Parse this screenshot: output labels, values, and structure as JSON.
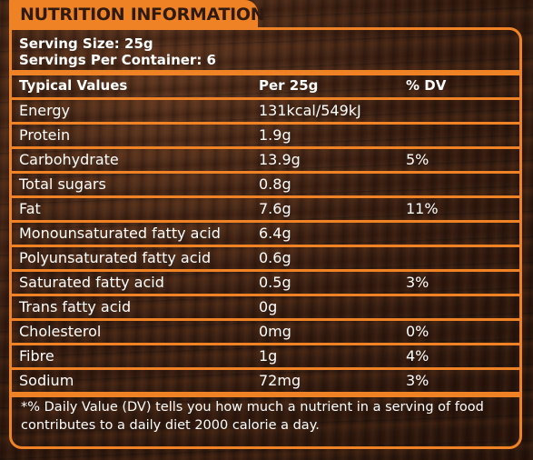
{
  "title": "NUTRITION INFORMATION",
  "serving_size": "Serving Size: 25g",
  "servings_per_container": "Servings Per Container: 6",
  "headers": {
    "nutrient": "Typical Values",
    "per": "Per 25g",
    "dv": "% DV"
  },
  "rows": [
    {
      "name": "Energy",
      "amount": "131kcal/549kJ",
      "dv": ""
    },
    {
      "name": "Protein",
      "amount": "1.9g",
      "dv": ""
    },
    {
      "name": "Carbohydrate",
      "amount": "13.9g",
      "dv": "5%"
    },
    {
      "name": "Total sugars",
      "amount": "0.8g",
      "dv": ""
    },
    {
      "name": "Fat",
      "amount": "7.6g",
      "dv": "11%"
    },
    {
      "name": "Monounsaturated fatty acid",
      "amount": "6.4g",
      "dv": ""
    },
    {
      "name": "Polyunsaturated fatty acid",
      "amount": "0.6g",
      "dv": ""
    },
    {
      "name": "Saturated fatty acid",
      "amount": "0.5g",
      "dv": "3%"
    },
    {
      "name": "Trans fatty acid",
      "amount": "0g",
      "dv": ""
    },
    {
      "name": "Cholesterol",
      "amount": "0mg",
      "dv": "0%"
    },
    {
      "name": "Fibre",
      "amount": "1g",
      "dv": "4%"
    },
    {
      "name": "Sodium",
      "amount": "72mg",
      "dv": "3%"
    }
  ],
  "footnote": "*% Daily Value (DV) tells you how much a nutrient in a serving of food contributes to a daily diet 2000 calorie a day.",
  "colors": {
    "accent": "#f08226",
    "text": "#ffffff",
    "title_text": "#2e1a0e"
  }
}
